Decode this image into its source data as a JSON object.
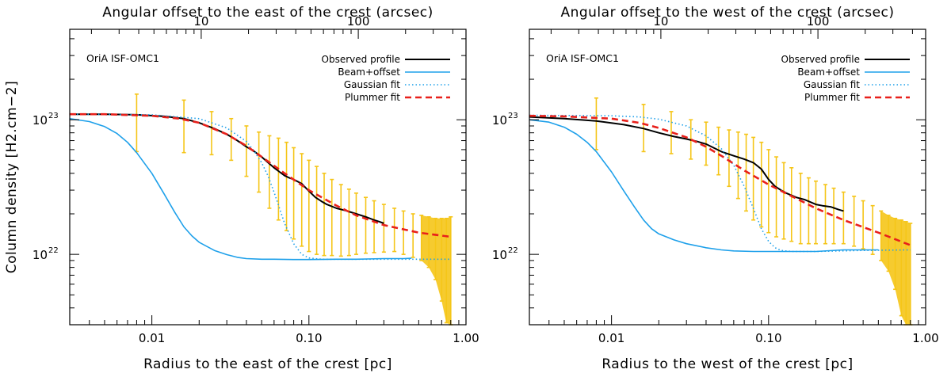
{
  "figure": {
    "description_type": "two-panel log-log radial column density profiles"
  },
  "chart_data": [
    {
      "type": "line",
      "panel": "east",
      "label": "OriA ISF-OMC1",
      "xlabel": "Radius to the east of the crest [pc]",
      "ylabel": "Column density [H2.cm−2]",
      "top_xlabel": "Angular offset to the east of the crest (arcsec)",
      "xscale": "log",
      "yscale": "log",
      "xlim": [
        0.003,
        1.0
      ],
      "ylim": [
        3e+21,
        4.7e+23
      ],
      "xticks": [
        {
          "value": 0.01,
          "label": "0.01"
        },
        {
          "value": 0.1,
          "label": "0.10"
        },
        {
          "value": 1.0,
          "label": "1.00"
        }
      ],
      "yticks": [
        {
          "value": 1e+22,
          "base": "10",
          "exp": "22"
        },
        {
          "value": 1e+23,
          "base": "10",
          "exp": "23"
        }
      ],
      "top_ticks": [
        {
          "value": 10,
          "label": "10"
        },
        {
          "value": 100,
          "label": "100"
        }
      ],
      "arcsec_per_pc": 485,
      "legend": [
        "Observed profile",
        "Beam+offset",
        "Gaussian fit",
        "Plummer fit"
      ],
      "series": [
        {
          "name": "Observed profile",
          "color": "#000000",
          "style": "solid",
          "x": [
            0.003,
            0.005,
            0.008,
            0.012,
            0.016,
            0.02,
            0.025,
            0.03,
            0.035,
            0.04,
            0.045,
            0.05,
            0.055,
            0.06,
            0.065,
            0.07,
            0.075,
            0.08,
            0.09,
            0.1,
            0.11,
            0.12,
            0.13,
            0.15,
            0.17,
            0.2,
            0.23,
            0.26,
            0.28,
            0.3
          ],
          "y": [
            1.1e+23,
            1.1e+23,
            1.09e+23,
            1.06e+23,
            1.02e+23,
            9.5e+22,
            8.6e+22,
            7.8e+22,
            7e+22,
            6.3e+22,
            5.8e+22,
            5.3e+22,
            4.8e+22,
            4.4e+22,
            4.1e+22,
            3.85e+22,
            3.7e+22,
            3.6e+22,
            3.35e+22,
            2.95e+22,
            2.65e+22,
            2.48e+22,
            2.35e+22,
            2.2e+22,
            2.12e+22,
            2e+22,
            1.9e+22,
            1.8e+22,
            1.75e+22,
            1.7e+22
          ]
        },
        {
          "name": "Beam+offset",
          "color": "#1ea0ea",
          "style": "solid",
          "x": [
            0.003,
            0.004,
            0.005,
            0.006,
            0.007,
            0.008,
            0.01,
            0.012,
            0.014,
            0.016,
            0.018,
            0.02,
            0.025,
            0.03,
            0.035,
            0.04,
            0.05,
            0.06,
            0.08,
            0.1,
            0.15,
            0.2,
            0.3,
            0.4,
            0.45
          ],
          "y": [
            1.02e+23,
            9.7e+22,
            8.9e+22,
            7.9e+22,
            6.8e+22,
            5.7e+22,
            4e+22,
            2.8e+22,
            2.05e+22,
            1.6e+22,
            1.37e+22,
            1.23e+22,
            1.07e+22,
            9.95e+21,
            9.5e+21,
            9.3e+21,
            9.2e+21,
            9.2e+21,
            9.15e+21,
            9.15e+21,
            9.2e+21,
            9.2e+21,
            9.3e+21,
            9.3e+21,
            9.35e+21
          ]
        },
        {
          "name": "Gaussian fit",
          "color": "#1ea0ea",
          "style": "dotted",
          "x": [
            0.003,
            0.01,
            0.02,
            0.03,
            0.04,
            0.045,
            0.05,
            0.055,
            0.06,
            0.065,
            0.07,
            0.08,
            0.09,
            0.1,
            0.12,
            0.15,
            0.3,
            0.6,
            0.8
          ],
          "y": [
            1.1e+23,
            1.09e+23,
            1.02e+23,
            8.7e+22,
            6.9e+22,
            5.8e+22,
            4.8e+22,
            3.8e+22,
            2.9e+22,
            2.2e+22,
            1.7e+22,
            1.2e+22,
            1e+22,
            9.4e+21,
            9.2e+21,
            9.2e+21,
            9.2e+21,
            9.2e+21,
            9.2e+21
          ]
        },
        {
          "name": "Plummer fit",
          "color": "#e8201b",
          "style": "dashed",
          "x": [
            0.003,
            0.005,
            0.01,
            0.015,
            0.02,
            0.03,
            0.04,
            0.05,
            0.07,
            0.1,
            0.15,
            0.2,
            0.3,
            0.5,
            0.8
          ],
          "y": [
            1.1e+23,
            1.1e+23,
            1.07e+23,
            1.02e+23,
            9.5e+22,
            7.8e+22,
            6.4e+22,
            5.3e+22,
            4e+22,
            3e+22,
            2.3e+22,
            1.95e+22,
            1.65e+22,
            1.45e+22,
            1.35e+22
          ]
        }
      ],
      "error_bars": {
        "color": "#f5c518",
        "points": [
          {
            "x": 0.008,
            "y": 1.08e+23,
            "lo": 5.8e+22,
            "hi": 1.55e+23
          },
          {
            "x": 0.016,
            "y": 1e+23,
            "lo": 5.7e+22,
            "hi": 1.4e+23
          },
          {
            "x": 0.024,
            "y": 8.6e+22,
            "lo": 5.5e+22,
            "hi": 1.15e+23
          },
          {
            "x": 0.032,
            "y": 7.6e+22,
            "lo": 5e+22,
            "hi": 1.02e+23
          },
          {
            "x": 0.04,
            "y": 6.3e+22,
            "lo": 3.8e+22,
            "hi": 9e+22
          },
          {
            "x": 0.048,
            "y": 5.5e+22,
            "lo": 2.9e+22,
            "hi": 8.1e+22
          },
          {
            "x": 0.056,
            "y": 4.7e+22,
            "lo": 2.2e+22,
            "hi": 7.6e+22
          },
          {
            "x": 0.064,
            "y": 4.2e+22,
            "lo": 1.8e+22,
            "hi": 7.3e+22
          },
          {
            "x": 0.072,
            "y": 3.8e+22,
            "lo": 1.5e+22,
            "hi": 6.8e+22
          },
          {
            "x": 0.08,
            "y": 3.6e+22,
            "lo": 1.3e+22,
            "hi": 6.2e+22
          },
          {
            "x": 0.09,
            "y": 3.3e+22,
            "lo": 1.15e+22,
            "hi": 5.6e+22
          },
          {
            "x": 0.1,
            "y": 2.95e+22,
            "lo": 1.05e+22,
            "hi": 5e+22
          },
          {
            "x": 0.112,
            "y": 2.65e+22,
            "lo": 1e+22,
            "hi": 4.5e+22
          },
          {
            "x": 0.125,
            "y": 2.45e+22,
            "lo": 9.8e+21,
            "hi": 4e+22
          },
          {
            "x": 0.14,
            "y": 2.3e+22,
            "lo": 9.8e+21,
            "hi": 3.6e+22
          },
          {
            "x": 0.16,
            "y": 2.15e+22,
            "lo": 9.7e+21,
            "hi": 3.3e+22
          },
          {
            "x": 0.18,
            "y": 2.05e+22,
            "lo": 9.8e+21,
            "hi": 3.05e+22
          },
          {
            "x": 0.2,
            "y": 2e+22,
            "lo": 1e+22,
            "hi": 2.85e+22
          },
          {
            "x": 0.23,
            "y": 1.9e+22,
            "lo": 1.02e+22,
            "hi": 2.65e+22
          },
          {
            "x": 0.26,
            "y": 1.8e+22,
            "lo": 1.03e+22,
            "hi": 2.5e+22
          },
          {
            "x": 0.3,
            "y": 1.7e+22,
            "lo": 1.04e+22,
            "hi": 2.35e+22
          },
          {
            "x": 0.35,
            "y": 1.62e+22,
            "lo": 1.05e+22,
            "hi": 2.2e+22
          },
          {
            "x": 0.4,
            "y": 1.55e+22,
            "lo": 1e+22,
            "hi": 2.1e+22
          },
          {
            "x": 0.46,
            "y": 1.5e+22,
            "lo": 9.5e+21,
            "hi": 2e+22
          },
          {
            "x": 0.52,
            "y": 1.45e+22,
            "lo": 9e+21,
            "hi": 1.95e+22
          },
          {
            "x": 0.58,
            "y": 1.42e+22,
            "lo": 8e+21,
            "hi": 1.9e+22
          },
          {
            "x": 0.64,
            "y": 1.4e+22,
            "lo": 6.5e+21,
            "hi": 1.85e+22
          },
          {
            "x": 0.7,
            "y": 1.38e+22,
            "lo": 4.5e+21,
            "hi": 1.85e+22
          },
          {
            "x": 0.75,
            "y": 1.35e+22,
            "lo": 3.1e+21,
            "hi": 1.85e+22
          },
          {
            "x": 0.8,
            "y": 1.35e+22,
            "lo": 3e+21,
            "hi": 1.9e+22
          }
        ]
      }
    },
    {
      "type": "line",
      "panel": "west",
      "label": "OriA ISF-OMC1",
      "xlabel": "Radius to the west of the crest [pc]",
      "ylabel": "",
      "top_xlabel": "Angular offset to the west of the crest (arcsec)",
      "xscale": "log",
      "yscale": "log",
      "xlim": [
        0.003,
        1.0
      ],
      "ylim": [
        3e+21,
        4.7e+23
      ],
      "xticks": [
        {
          "value": 0.01,
          "label": "0.01"
        },
        {
          "value": 0.1,
          "label": "0.10"
        },
        {
          "value": 1.0,
          "label": "1.00"
        }
      ],
      "yticks": [
        {
          "value": 1e+22,
          "base": "10",
          "exp": "22"
        },
        {
          "value": 1e+23,
          "base": "10",
          "exp": "23"
        }
      ],
      "top_ticks": [
        {
          "value": 10,
          "label": "10"
        },
        {
          "value": 100,
          "label": "100"
        }
      ],
      "arcsec_per_pc": 485,
      "legend": [
        "Observed profile",
        "Beam+offset",
        "Gaussian fit",
        "Plummer fit"
      ],
      "series": [
        {
          "name": "Observed profile",
          "color": "#000000",
          "style": "solid",
          "x": [
            0.003,
            0.005,
            0.008,
            0.012,
            0.016,
            0.02,
            0.025,
            0.03,
            0.035,
            0.04,
            0.05,
            0.06,
            0.07,
            0.08,
            0.09,
            0.1,
            0.11,
            0.12,
            0.13,
            0.15,
            0.17,
            0.2,
            0.22,
            0.25,
            0.28,
            0.3
          ],
          "y": [
            1.05e+23,
            1.02e+23,
            9.8e+22,
            9.2e+22,
            8.6e+22,
            8e+22,
            7.5e+22,
            7.2e+22,
            6.9e+22,
            6.6e+22,
            5.8e+22,
            5.4e+22,
            5.1e+22,
            4.8e+22,
            4.3e+22,
            3.6e+22,
            3.2e+22,
            3e+22,
            2.85e+22,
            2.65e+22,
            2.55e+22,
            2.35e+22,
            2.3e+22,
            2.25e+22,
            2.15e+22,
            2.1e+22
          ]
        },
        {
          "name": "Beam+offset",
          "color": "#1ea0ea",
          "style": "solid",
          "x": [
            0.003,
            0.004,
            0.005,
            0.006,
            0.007,
            0.008,
            0.01,
            0.012,
            0.014,
            0.016,
            0.018,
            0.02,
            0.025,
            0.03,
            0.04,
            0.05,
            0.06,
            0.08,
            0.1,
            0.15,
            0.2,
            0.3,
            0.4,
            0.5
          ],
          "y": [
            1e+23,
            9.6e+22,
            8.8e+22,
            7.8e+22,
            6.8e+22,
            5.8e+22,
            4.1e+22,
            2.95e+22,
            2.25e+22,
            1.8e+22,
            1.55e+22,
            1.42e+22,
            1.28e+22,
            1.2e+22,
            1.12e+22,
            1.08e+22,
            1.06e+22,
            1.05e+22,
            1.05e+22,
            1.05e+22,
            1.05e+22,
            1.08e+22,
            1.08e+22,
            1.08e+22
          ]
        },
        {
          "name": "Gaussian fit",
          "color": "#1ea0ea",
          "style": "dotted",
          "x": [
            0.003,
            0.01,
            0.015,
            0.02,
            0.03,
            0.04,
            0.05,
            0.06,
            0.07,
            0.08,
            0.09,
            0.1,
            0.11,
            0.12,
            0.14,
            0.2,
            0.4,
            0.8
          ],
          "y": [
            1.08e+23,
            1.07e+23,
            1.05e+23,
            1.01e+23,
            9e+22,
            7.6e+22,
            6.1e+22,
            4.6e+22,
            3.2e+22,
            2.2e+22,
            1.55e+22,
            1.25e+22,
            1.12e+22,
            1.07e+22,
            1.05e+22,
            1.05e+22,
            1.07e+22,
            1.08e+22
          ]
        },
        {
          "name": "Plummer fit",
          "color": "#e8201b",
          "style": "dashed",
          "x": [
            0.003,
            0.005,
            0.01,
            0.015,
            0.02,
            0.03,
            0.04,
            0.05,
            0.07,
            0.1,
            0.15,
            0.2,
            0.3,
            0.5,
            0.8
          ],
          "y": [
            1.07e+23,
            1.06e+23,
            1.02e+23,
            9.5e+22,
            8.7e+22,
            7.4e+22,
            6.3e+22,
            5.4e+22,
            4.2e+22,
            3.3e+22,
            2.6e+22,
            2.2e+22,
            1.8e+22,
            1.45e+22,
            1.17e+22
          ]
        }
      ],
      "error_bars": {
        "color": "#f5c518",
        "points": [
          {
            "x": 0.008,
            "y": 9.8e+22,
            "lo": 6e+22,
            "hi": 1.45e+23
          },
          {
            "x": 0.016,
            "y": 8.6e+22,
            "lo": 5.8e+22,
            "hi": 1.3e+23
          },
          {
            "x": 0.024,
            "y": 7.6e+22,
            "lo": 5.6e+22,
            "hi": 1.15e+23
          },
          {
            "x": 0.032,
            "y": 7.1e+22,
            "lo": 5.1e+22,
            "hi": 1e+23
          },
          {
            "x": 0.04,
            "y": 6.6e+22,
            "lo": 4.6e+22,
            "hi": 9.6e+22
          },
          {
            "x": 0.048,
            "y": 6e+22,
            "lo": 3.9e+22,
            "hi": 8.8e+22
          },
          {
            "x": 0.056,
            "y": 5.5e+22,
            "lo": 3.2e+22,
            "hi": 8.4e+22
          },
          {
            "x": 0.064,
            "y": 5.3e+22,
            "lo": 2.6e+22,
            "hi": 8.1e+22
          },
          {
            "x": 0.072,
            "y": 5e+22,
            "lo": 2.1e+22,
            "hi": 7.8e+22
          },
          {
            "x": 0.08,
            "y": 4.8e+22,
            "lo": 1.8e+22,
            "hi": 7.4e+22
          },
          {
            "x": 0.09,
            "y": 4.3e+22,
            "lo": 1.6e+22,
            "hi": 6.8e+22
          },
          {
            "x": 0.1,
            "y": 3.6e+22,
            "lo": 1.45e+22,
            "hi": 6e+22
          },
          {
            "x": 0.112,
            "y": 3.2e+22,
            "lo": 1.35e+22,
            "hi": 5.3e+22
          },
          {
            "x": 0.125,
            "y": 2.95e+22,
            "lo": 1.3e+22,
            "hi": 4.8e+22
          },
          {
            "x": 0.14,
            "y": 2.8e+22,
            "lo": 1.25e+22,
            "hi": 4.4e+22
          },
          {
            "x": 0.16,
            "y": 2.6e+22,
            "lo": 1.2e+22,
            "hi": 4e+22
          },
          {
            "x": 0.18,
            "y": 2.5e+22,
            "lo": 1.2e+22,
            "hi": 3.7e+22
          },
          {
            "x": 0.2,
            "y": 2.35e+22,
            "lo": 1.2e+22,
            "hi": 3.5e+22
          },
          {
            "x": 0.23,
            "y": 2.3e+22,
            "lo": 1.2e+22,
            "hi": 3.3e+22
          },
          {
            "x": 0.26,
            "y": 2.2e+22,
            "lo": 1.2e+22,
            "hi": 3.1e+22
          },
          {
            "x": 0.3,
            "y": 2.1e+22,
            "lo": 1.2e+22,
            "hi": 2.9e+22
          },
          {
            "x": 0.35,
            "y": 1.95e+22,
            "lo": 1.15e+22,
            "hi": 2.7e+22
          },
          {
            "x": 0.4,
            "y": 1.8e+22,
            "lo": 1.1e+22,
            "hi": 2.5e+22
          },
          {
            "x": 0.46,
            "y": 1.65e+22,
            "lo": 1e+22,
            "hi": 2.3e+22
          },
          {
            "x": 0.52,
            "y": 1.5e+22,
            "lo": 9e+21,
            "hi": 2.1e+22
          },
          {
            "x": 0.58,
            "y": 1.4e+22,
            "lo": 7.5e+21,
            "hi": 1.95e+22
          },
          {
            "x": 0.64,
            "y": 1.3e+22,
            "lo": 5.5e+21,
            "hi": 1.85e+22
          },
          {
            "x": 0.7,
            "y": 1.25e+22,
            "lo": 3.5e+21,
            "hi": 1.8e+22
          },
          {
            "x": 0.75,
            "y": 1.2e+22,
            "lo": 3e+21,
            "hi": 1.75e+22
          },
          {
            "x": 0.8,
            "y": 1.17e+22,
            "lo": 3e+21,
            "hi": 1.7e+22
          }
        ]
      }
    }
  ]
}
